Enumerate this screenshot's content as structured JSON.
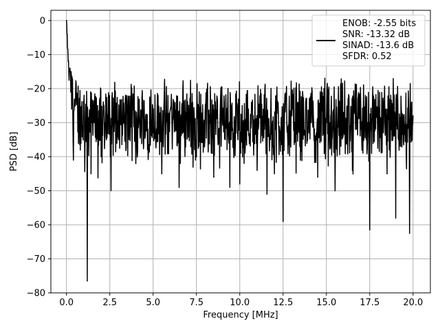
{
  "chart_data": {
    "type": "line",
    "title": "",
    "xlabel": "Frequency [MHz]",
    "ylabel": "PSD [dB]",
    "xlim": [
      -0.9,
      21
    ],
    "ylim": [
      -80,
      3
    ],
    "x_ticks": [
      0.0,
      2.5,
      5.0,
      7.5,
      10.0,
      12.5,
      15.0,
      17.5,
      20.0
    ],
    "x_tick_labels": [
      "0.0",
      "2.5",
      "5.0",
      "7.5",
      "10.0",
      "12.5",
      "15.0",
      "17.5",
      "20.0"
    ],
    "y_ticks": [
      0,
      -10,
      -20,
      -30,
      -40,
      -50,
      -60,
      -70,
      -80
    ],
    "y_tick_labels": [
      "0",
      "−10",
      "−20",
      "−30",
      "−40",
      "−50",
      "−60",
      "−70",
      "−80"
    ],
    "grid": true,
    "legend_position": "top-right",
    "colors": {
      "line": "#000000",
      "grid": "#b0b0b0",
      "legend_border": "#cccccc"
    },
    "series": [
      {
        "name": "",
        "legend_lines": [
          "ENOB: -2.55 bits",
          "SNR: -13.32 dB",
          "SINAD: -13.6 dB",
          "SFDR: 0.52"
        ],
        "description_values": {
          "x_start": 0.0,
          "x_end": 20.0,
          "peak_db": 0.0,
          "deepest_notch_db": -76.5,
          "deepest_notch_freq": 1.2
        },
        "x": [
          0.0,
          0.03,
          0.06,
          0.1,
          0.15,
          0.2,
          0.25,
          0.3,
          0.4,
          0.5,
          0.6,
          0.8,
          1.0,
          1.2,
          1.4,
          1.6,
          1.8,
          2.0,
          2.5,
          3.0,
          3.5,
          4.0,
          4.5,
          5.0,
          5.5,
          6.0,
          6.5,
          7.0,
          7.5,
          8.0,
          8.5,
          9.0,
          9.5,
          10.0,
          10.5,
          11.0,
          11.5,
          12.0,
          12.5,
          13.0,
          13.5,
          14.0,
          14.5,
          15.0,
          15.5,
          16.0,
          16.5,
          17.0,
          17.5,
          18.0,
          18.5,
          19.0,
          19.5,
          19.8,
          20.0
        ],
        "y": [
          0.0,
          -4.0,
          -8.0,
          -12.0,
          -17.5,
          -14.0,
          -21.0,
          -26.0,
          -41.0,
          -25.0,
          -22.0,
          -38.0,
          -24.0,
          -76.5,
          -21.0,
          -30.0,
          -25.0,
          -40.0,
          -28.0,
          -35.0,
          -27.0,
          -42.0,
          -29.0,
          -33.0,
          -45.0,
          -26.0,
          -49.0,
          -30.0,
          -40.0,
          -27.0,
          -46.0,
          -29.0,
          -35.0,
          -48.0,
          -26.0,
          -44.0,
          -31.0,
          -45.0,
          -59.0,
          -28.0,
          -41.0,
          -33.0,
          -46.0,
          -30.0,
          -50.0,
          -27.0,
          -44.0,
          -32.0,
          -61.5,
          -29.0,
          -45.0,
          -58.0,
          -31.0,
          -62.5,
          -28.0
        ]
      }
    ]
  }
}
